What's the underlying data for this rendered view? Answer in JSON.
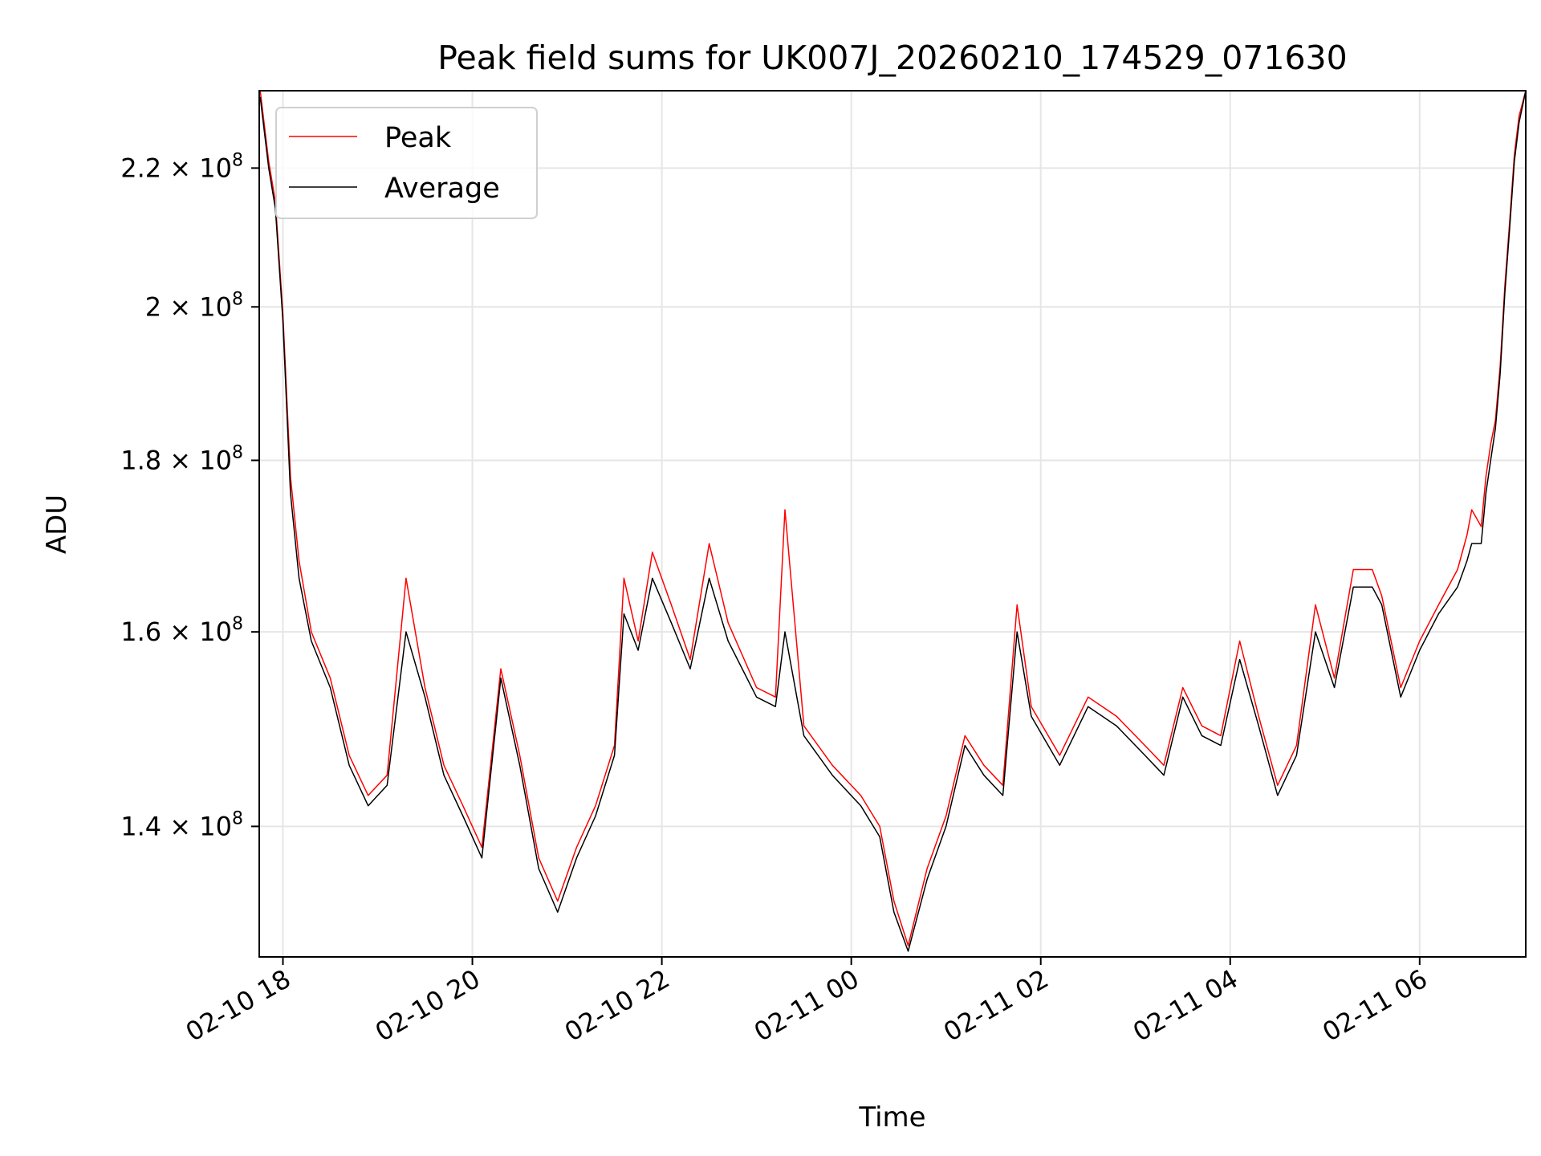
{
  "chart_data": {
    "type": "line",
    "title": "Peak field sums for UK007J_20260210_174529_071630",
    "xlabel": "Time",
    "ylabel": "ADU",
    "yscale": "log",
    "ylim": [
      128000000,
      232000000
    ],
    "xlim_hours": [
      17.75,
      31.12
    ],
    "grid": true,
    "legend": "top-left",
    "x_ticks": [
      {
        "hours": 18,
        "label": "02-10 18"
      },
      {
        "hours": 20,
        "label": "02-10 20"
      },
      {
        "hours": 22,
        "label": "02-10 22"
      },
      {
        "hours": 24,
        "label": "02-11 00"
      },
      {
        "hours": 26,
        "label": "02-11 02"
      },
      {
        "hours": 28,
        "label": "02-11 04"
      },
      {
        "hours": 30,
        "label": "02-11 06"
      }
    ],
    "y_ticks": [
      {
        "value": 140000000,
        "mantissa": "1.4"
      },
      {
        "value": 160000000,
        "mantissa": "1.6"
      },
      {
        "value": 180000000,
        "mantissa": "1.8"
      },
      {
        "value": 200000000,
        "mantissa": "2"
      },
      {
        "value": 220000000,
        "mantissa": "2.2"
      }
    ],
    "y_tick_base": "× 10",
    "y_tick_exponent": "8",
    "series": [
      {
        "name": "Peak",
        "color": "#ff0000",
        "x_hours": [
          17.76,
          17.85,
          17.92,
          18.0,
          18.08,
          18.17,
          18.3,
          18.5,
          18.7,
          18.9,
          19.1,
          19.3,
          19.5,
          19.7,
          19.9,
          20.1,
          20.3,
          20.5,
          20.7,
          20.9,
          21.1,
          21.3,
          21.5,
          21.6,
          21.75,
          21.9,
          22.1,
          22.3,
          22.5,
          22.7,
          23.0,
          23.2,
          23.3,
          23.5,
          23.8,
          24.1,
          24.3,
          24.45,
          24.6,
          24.8,
          25.0,
          25.2,
          25.4,
          25.6,
          25.75,
          25.9,
          26.2,
          26.5,
          26.8,
          27.1,
          27.3,
          27.5,
          27.7,
          27.9,
          28.1,
          28.3,
          28.5,
          28.7,
          28.9,
          29.1,
          29.3,
          29.5,
          29.6,
          29.8,
          30.0,
          30.2,
          30.4,
          30.5,
          30.55,
          30.65,
          30.7,
          30.75,
          30.8,
          30.85,
          30.9,
          30.95,
          31.0,
          31.05,
          31.12
        ],
        "values": [
          232000000,
          221000000,
          215000000,
          199000000,
          178000000,
          168000000,
          160000000,
          155000000,
          147000000,
          143000000,
          145000000,
          166000000,
          154000000,
          146000000,
          142000000,
          138000000,
          156000000,
          147000000,
          137000000,
          133000000,
          138000000,
          142000000,
          148000000,
          166000000,
          159000000,
          169000000,
          163000000,
          157000000,
          170000000,
          161000000,
          154000000,
          153000000,
          174000000,
          150000000,
          146000000,
          143000000,
          140000000,
          133000000,
          129000000,
          136000000,
          141000000,
          149000000,
          146000000,
          144000000,
          163000000,
          152000000,
          147000000,
          153000000,
          151000000,
          148000000,
          146000000,
          154000000,
          150000000,
          149000000,
          159000000,
          151000000,
          144000000,
          148000000,
          163000000,
          155000000,
          167000000,
          167000000,
          164000000,
          154000000,
          159000000,
          163000000,
          167000000,
          171000000,
          174000000,
          172000000,
          178000000,
          182000000,
          185000000,
          192000000,
          203000000,
          212000000,
          222000000,
          228000000,
          232000000
        ]
      },
      {
        "name": "Average",
        "color": "#000000",
        "x_hours": [
          17.76,
          17.85,
          17.92,
          18.0,
          18.08,
          18.17,
          18.3,
          18.5,
          18.7,
          18.9,
          19.1,
          19.3,
          19.5,
          19.7,
          19.9,
          20.1,
          20.3,
          20.5,
          20.7,
          20.9,
          21.1,
          21.3,
          21.5,
          21.6,
          21.75,
          21.9,
          22.1,
          22.3,
          22.5,
          22.7,
          23.0,
          23.2,
          23.3,
          23.5,
          23.8,
          24.1,
          24.3,
          24.45,
          24.6,
          24.8,
          25.0,
          25.2,
          25.4,
          25.6,
          25.75,
          25.9,
          26.2,
          26.5,
          26.8,
          27.1,
          27.3,
          27.5,
          27.7,
          27.9,
          28.1,
          28.3,
          28.5,
          28.7,
          28.9,
          29.1,
          29.3,
          29.5,
          29.6,
          29.8,
          30.0,
          30.2,
          30.4,
          30.5,
          30.55,
          30.65,
          30.7,
          30.75,
          30.8,
          30.85,
          30.9,
          30.95,
          31.0,
          31.05,
          31.12
        ],
        "values": [
          231000000,
          220000000,
          214000000,
          198000000,
          176000000,
          166000000,
          159000000,
          154000000,
          146000000,
          142000000,
          144000000,
          160000000,
          153000000,
          145000000,
          141000000,
          137000000,
          155000000,
          146000000,
          136000000,
          132000000,
          137000000,
          141000000,
          147000000,
          162000000,
          158000000,
          166000000,
          161000000,
          156000000,
          166000000,
          159000000,
          153000000,
          152000000,
          160000000,
          149000000,
          145000000,
          142000000,
          139000000,
          132000000,
          128500000,
          135000000,
          140000000,
          148000000,
          145000000,
          143000000,
          160000000,
          151000000,
          146000000,
          152000000,
          150000000,
          147000000,
          145000000,
          153000000,
          149000000,
          148000000,
          157000000,
          150000000,
          143000000,
          147000000,
          160000000,
          154000000,
          165000000,
          165000000,
          163000000,
          153000000,
          158000000,
          162000000,
          165000000,
          168000000,
          170000000,
          170000000,
          176000000,
          180000000,
          184000000,
          191000000,
          202000000,
          211000000,
          221000000,
          227000000,
          232000000
        ]
      }
    ]
  }
}
